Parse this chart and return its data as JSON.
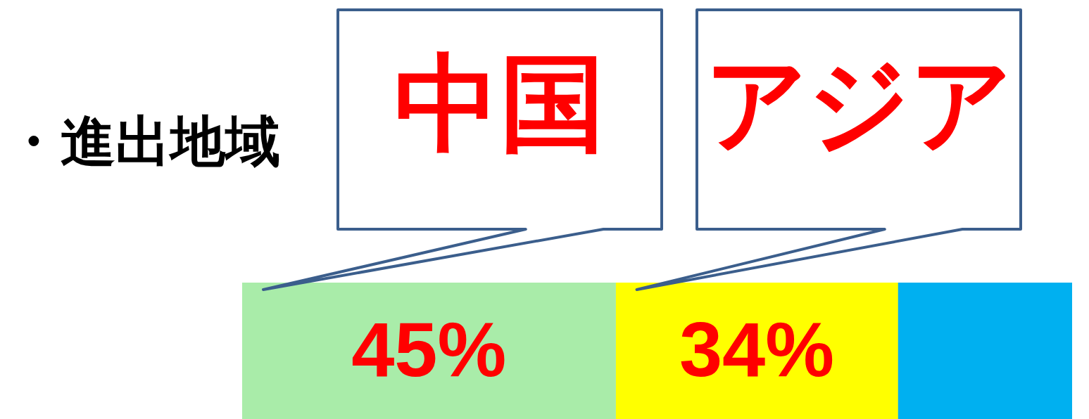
{
  "chart_data": {
    "type": "bar",
    "orientation": "horizontal",
    "stacked": true,
    "title": "・進出地域",
    "categories": [
      null
    ],
    "xlim": [
      0,
      100
    ],
    "tick_labels": false,
    "series": [
      {
        "name": "中国",
        "color": "#a9eca9",
        "values": [
          45
        ],
        "value_labels": [
          "45%"
        ]
      },
      {
        "name": "アジア",
        "color": "#ffff00",
        "values": [
          34
        ],
        "value_labels": [
          "34%"
        ]
      },
      {
        "color": "#00b0f0",
        "values": [
          21
        ]
      }
    ]
  }
}
